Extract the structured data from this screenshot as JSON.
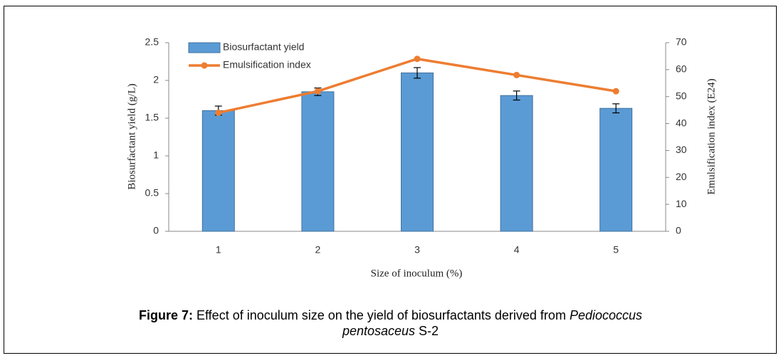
{
  "chart_data": {
    "type": "bar_line",
    "x_label": "Size of inoculum (%)",
    "y_label": "Biosurfactant yield (g/L)",
    "y2_label": "Emulsification index (E24)",
    "categories": [
      "1",
      "2",
      "3",
      "4",
      "5"
    ],
    "series": [
      {
        "name": "Biosurfactant yield",
        "type": "bar",
        "color": "#5b9bd5",
        "values": [
          1.6,
          1.85,
          2.1,
          1.8,
          1.63
        ],
        "errors": [
          0.06,
          0.05,
          0.07,
          0.06,
          0.06
        ]
      },
      {
        "name": "Emulsification index",
        "type": "line",
        "axis": "y2",
        "color": "#ed7d31",
        "values": [
          44,
          52,
          64,
          58,
          52
        ]
      }
    ],
    "ylim": [
      0,
      2.5
    ],
    "yticks": [
      0,
      0.5,
      1,
      1.5,
      2,
      2.5
    ],
    "y2lim": [
      0,
      70
    ],
    "y2ticks": [
      0,
      10,
      20,
      30,
      40,
      50,
      60,
      70
    ],
    "legend": "upper left",
    "grid": false
  },
  "caption": {
    "label": "Figure 7:",
    "parts": [
      "Effect of inoculum size on the yield of biosurfactants derived from",
      "Pediococcus",
      "pentosaceus",
      "S-2"
    ]
  }
}
